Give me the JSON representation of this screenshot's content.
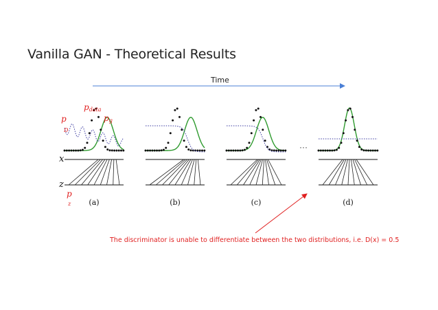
{
  "slide": {
    "title": "Vanilla GAN - Theoretical Results",
    "time_label": "Time",
    "annotation": "The discriminator is unable to differentiate between the two distributions, i.e. D(x) = 0.5"
  },
  "legend": {
    "p_D": "p",
    "p_D_sub": "D",
    "p_data": "p",
    "p_data_sub": "data",
    "p_g": "p",
    "p_g_sub": "g",
    "p_z": "p",
    "p_z_sub": "z"
  },
  "axis_labels": {
    "x": "x",
    "z": "z"
  },
  "panels": [
    {
      "label": "(a)",
      "generator_mean": 0.45,
      "discriminator": "oscillating"
    },
    {
      "label": "(b)",
      "generator_mean": 0.55,
      "discriminator": "sigmoid-drop"
    },
    {
      "label": "(c)",
      "generator_mean": 0.2,
      "discriminator": "sigmoid-drop"
    },
    {
      "label": "(d)",
      "generator_mean": 0.0,
      "discriminator": "flat-0.5"
    }
  ],
  "ellipsis": "···",
  "colors": {
    "data": "#111111",
    "generator": "#2e9a2e",
    "discriminator": "#3a3aa0",
    "time_arrow": "#4a7fd6",
    "annotation": "#e02020"
  }
}
